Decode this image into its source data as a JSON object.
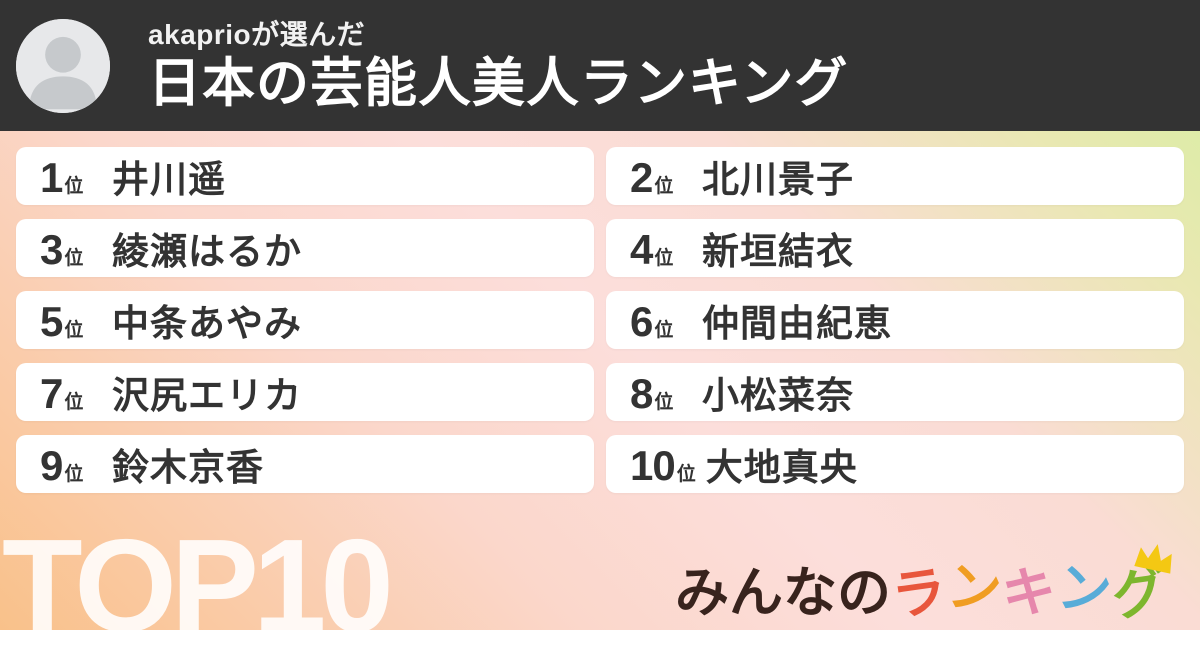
{
  "header": {
    "byline": "akaprioが選んだ",
    "title": "日本の芸能人美人ランキング",
    "background_color": "#333333",
    "avatar_icon": "person-icon"
  },
  "ranking": {
    "suffix_label": "位",
    "card_color": "#ffffff",
    "text_color": "#333333",
    "items": [
      {
        "rank": "1",
        "name": "井川遥"
      },
      {
        "rank": "2",
        "name": "北川景子"
      },
      {
        "rank": "3",
        "name": "綾瀬はるか"
      },
      {
        "rank": "4",
        "name": "新垣結衣"
      },
      {
        "rank": "5",
        "name": "中条あやみ"
      },
      {
        "rank": "6",
        "name": "仲間由紀恵"
      },
      {
        "rank": "7",
        "name": "沢尻エリカ"
      },
      {
        "rank": "8",
        "name": "小松菜奈"
      },
      {
        "rank": "9",
        "name": "鈴木京香"
      },
      {
        "rank": "10",
        "name": "大地真央"
      }
    ]
  },
  "footer": {
    "badge": "TOP10",
    "brand": {
      "prefix": {
        "text": "みんなの",
        "color": "#38231d"
      },
      "chars": [
        {
          "char": "ラ",
          "color": "#e8563c"
        },
        {
          "char": "ン",
          "color": "#f09d22"
        },
        {
          "char": "キ",
          "color": "#e687ac"
        },
        {
          "char": "ン",
          "color": "#58acd8"
        },
        {
          "char": "グ",
          "color": "#7db62e"
        }
      ],
      "crown_icon": "crown-icon",
      "crown_color": "#f4c813"
    }
  },
  "background": {
    "gradient": [
      "#f9c18a",
      "#fbd7cb",
      "#fcdedb",
      "#fadcd4",
      "#e9e8b2",
      "#d5efa0"
    ]
  }
}
